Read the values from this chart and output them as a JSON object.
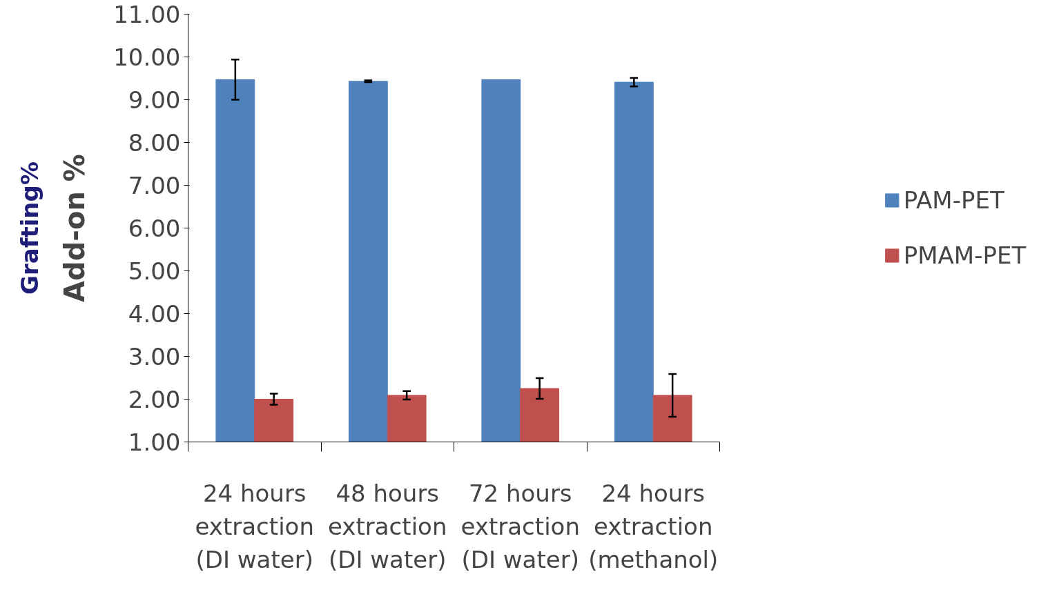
{
  "chart_data": {
    "type": "bar",
    "ylabel": "Add-on %",
    "annotations": [
      "Grafting%"
    ],
    "categories": [
      "24 hours\nextraction\n(DI water)",
      "48 hours\nextraction\n(DI water)",
      "72 hours\nextraction\n(DI water)",
      "24 hours\nextraction\n(methanol)"
    ],
    "series": [
      {
        "name": "PAM-PET",
        "color": "#4f81bd",
        "values": [
          9.47,
          9.43,
          9.47,
          9.41
        ],
        "errors": [
          0.47,
          0.02,
          null,
          0.1
        ]
      },
      {
        "name": "PMAM-PET",
        "color": "#c0504d",
        "values": [
          2.0,
          2.09,
          2.25,
          2.09
        ],
        "errors": [
          0.13,
          0.1,
          0.24,
          0.5
        ]
      }
    ],
    "ylim": [
      1,
      11
    ],
    "yticks": [
      {
        "value": 1,
        "label": "1.00"
      },
      {
        "value": 2,
        "label": "2.00"
      },
      {
        "value": 3,
        "label": "3.00"
      },
      {
        "value": 4,
        "label": "4.00"
      },
      {
        "value": 5,
        "label": "5.00"
      },
      {
        "value": 6,
        "label": "6.00"
      },
      {
        "value": 7,
        "label": "7.00"
      },
      {
        "value": 8,
        "label": "8.00"
      },
      {
        "value": 9,
        "label": "9.00"
      },
      {
        "value": 10,
        "label": "10.00"
      },
      {
        "value": 11,
        "label": "11.00"
      }
    ],
    "grid": false,
    "legend": "right"
  }
}
